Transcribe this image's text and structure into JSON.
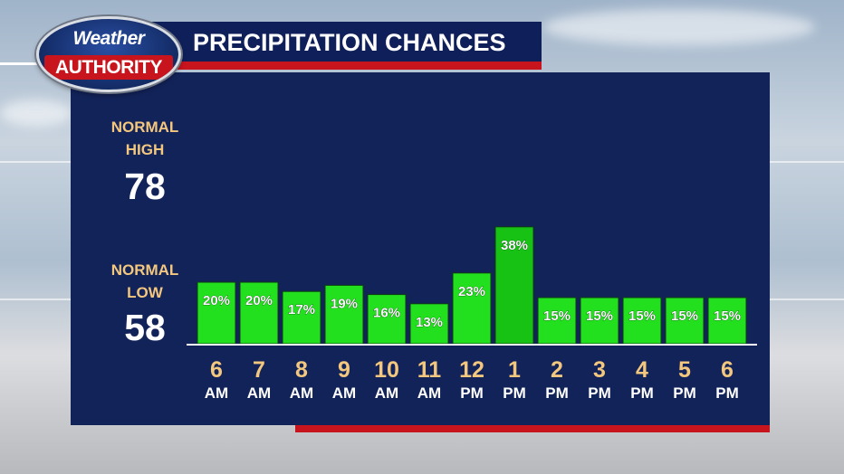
{
  "logo": {
    "line1": "Weather",
    "line2": "AUTHORITY"
  },
  "header": {
    "title": "PRECIPITATION CHANCES"
  },
  "normals": {
    "high": {
      "label_line1": "NORMAL",
      "label_line2": "HIGH",
      "value": "78"
    },
    "low": {
      "label_line1": "NORMAL",
      "label_line2": "LOW",
      "value": "58"
    }
  },
  "colors": {
    "bar": "#22e01e",
    "bar_highlight": "#17c214",
    "panel": "#12235a",
    "accent_red": "#c8141d",
    "hour_label": "#f3c77e",
    "period_label": "#ffffff"
  },
  "chart_data": {
    "type": "bar",
    "title": "PRECIPITATION CHANCES",
    "categories": [
      "6 AM",
      "7 AM",
      "8 AM",
      "9 AM",
      "10 AM",
      "11 AM",
      "12 PM",
      "1 PM",
      "2 PM",
      "3 PM",
      "4 PM",
      "5 PM",
      "6 PM"
    ],
    "hours": [
      "6",
      "7",
      "8",
      "9",
      "10",
      "11",
      "12",
      "1",
      "2",
      "3",
      "4",
      "5",
      "6"
    ],
    "periods": [
      "AM",
      "AM",
      "AM",
      "AM",
      "AM",
      "AM",
      "PM",
      "PM",
      "PM",
      "PM",
      "PM",
      "PM",
      "PM"
    ],
    "values": [
      20,
      20,
      17,
      19,
      16,
      13,
      23,
      38,
      15,
      15,
      15,
      15,
      15
    ],
    "value_labels": [
      "20%",
      "20%",
      "17%",
      "19%",
      "16%",
      "13%",
      "23%",
      "38%",
      "15%",
      "15%",
      "15%",
      "15%",
      "15%"
    ],
    "highlight_index": 7,
    "unit": "%"
  }
}
